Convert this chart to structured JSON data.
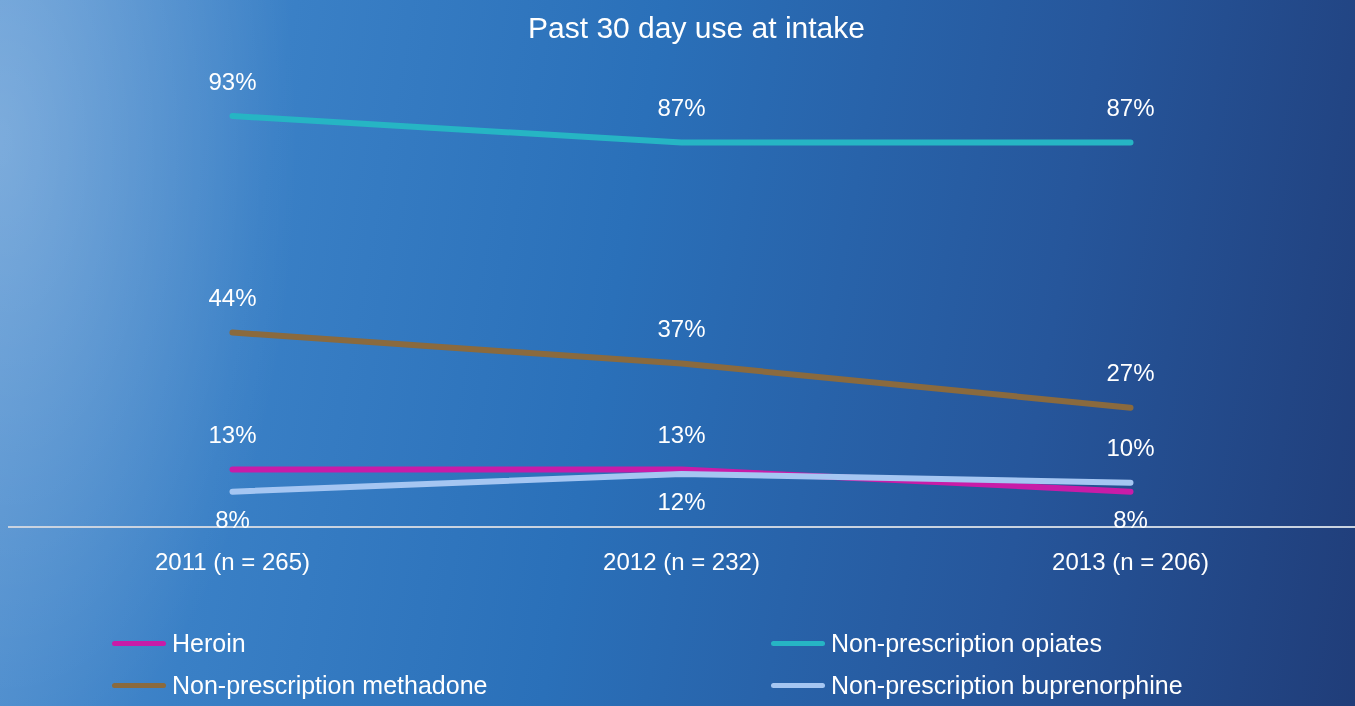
{
  "chart_data": {
    "type": "line",
    "title": "Past 30 day use at intake",
    "categories": [
      "2011 (n = 265)",
      "2012 (n = 232)",
      "2013 (n = 206)"
    ],
    "series": [
      {
        "name": "Heroin",
        "color": "#c81ca8",
        "values": [
          13,
          13,
          8
        ],
        "value_labels": [
          "13%",
          "13%",
          "8%"
        ]
      },
      {
        "name": "Non-prescription opiates",
        "color": "#26b5c4",
        "values": [
          93,
          87,
          87
        ],
        "value_labels": [
          "93%",
          "87%",
          "87%"
        ]
      },
      {
        "name": "Non-prescription methadone",
        "color": "#8a6a3e",
        "values": [
          44,
          37,
          27
        ],
        "value_labels": [
          "44%",
          "37%",
          "27%"
        ]
      },
      {
        "name": "Non-prescription buprenorphine",
        "color": "#a5c6f2",
        "values": [
          8,
          12,
          10
        ],
        "value_labels": [
          "8%",
          "12%",
          "10%"
        ]
      }
    ],
    "legend": "bottom"
  }
}
